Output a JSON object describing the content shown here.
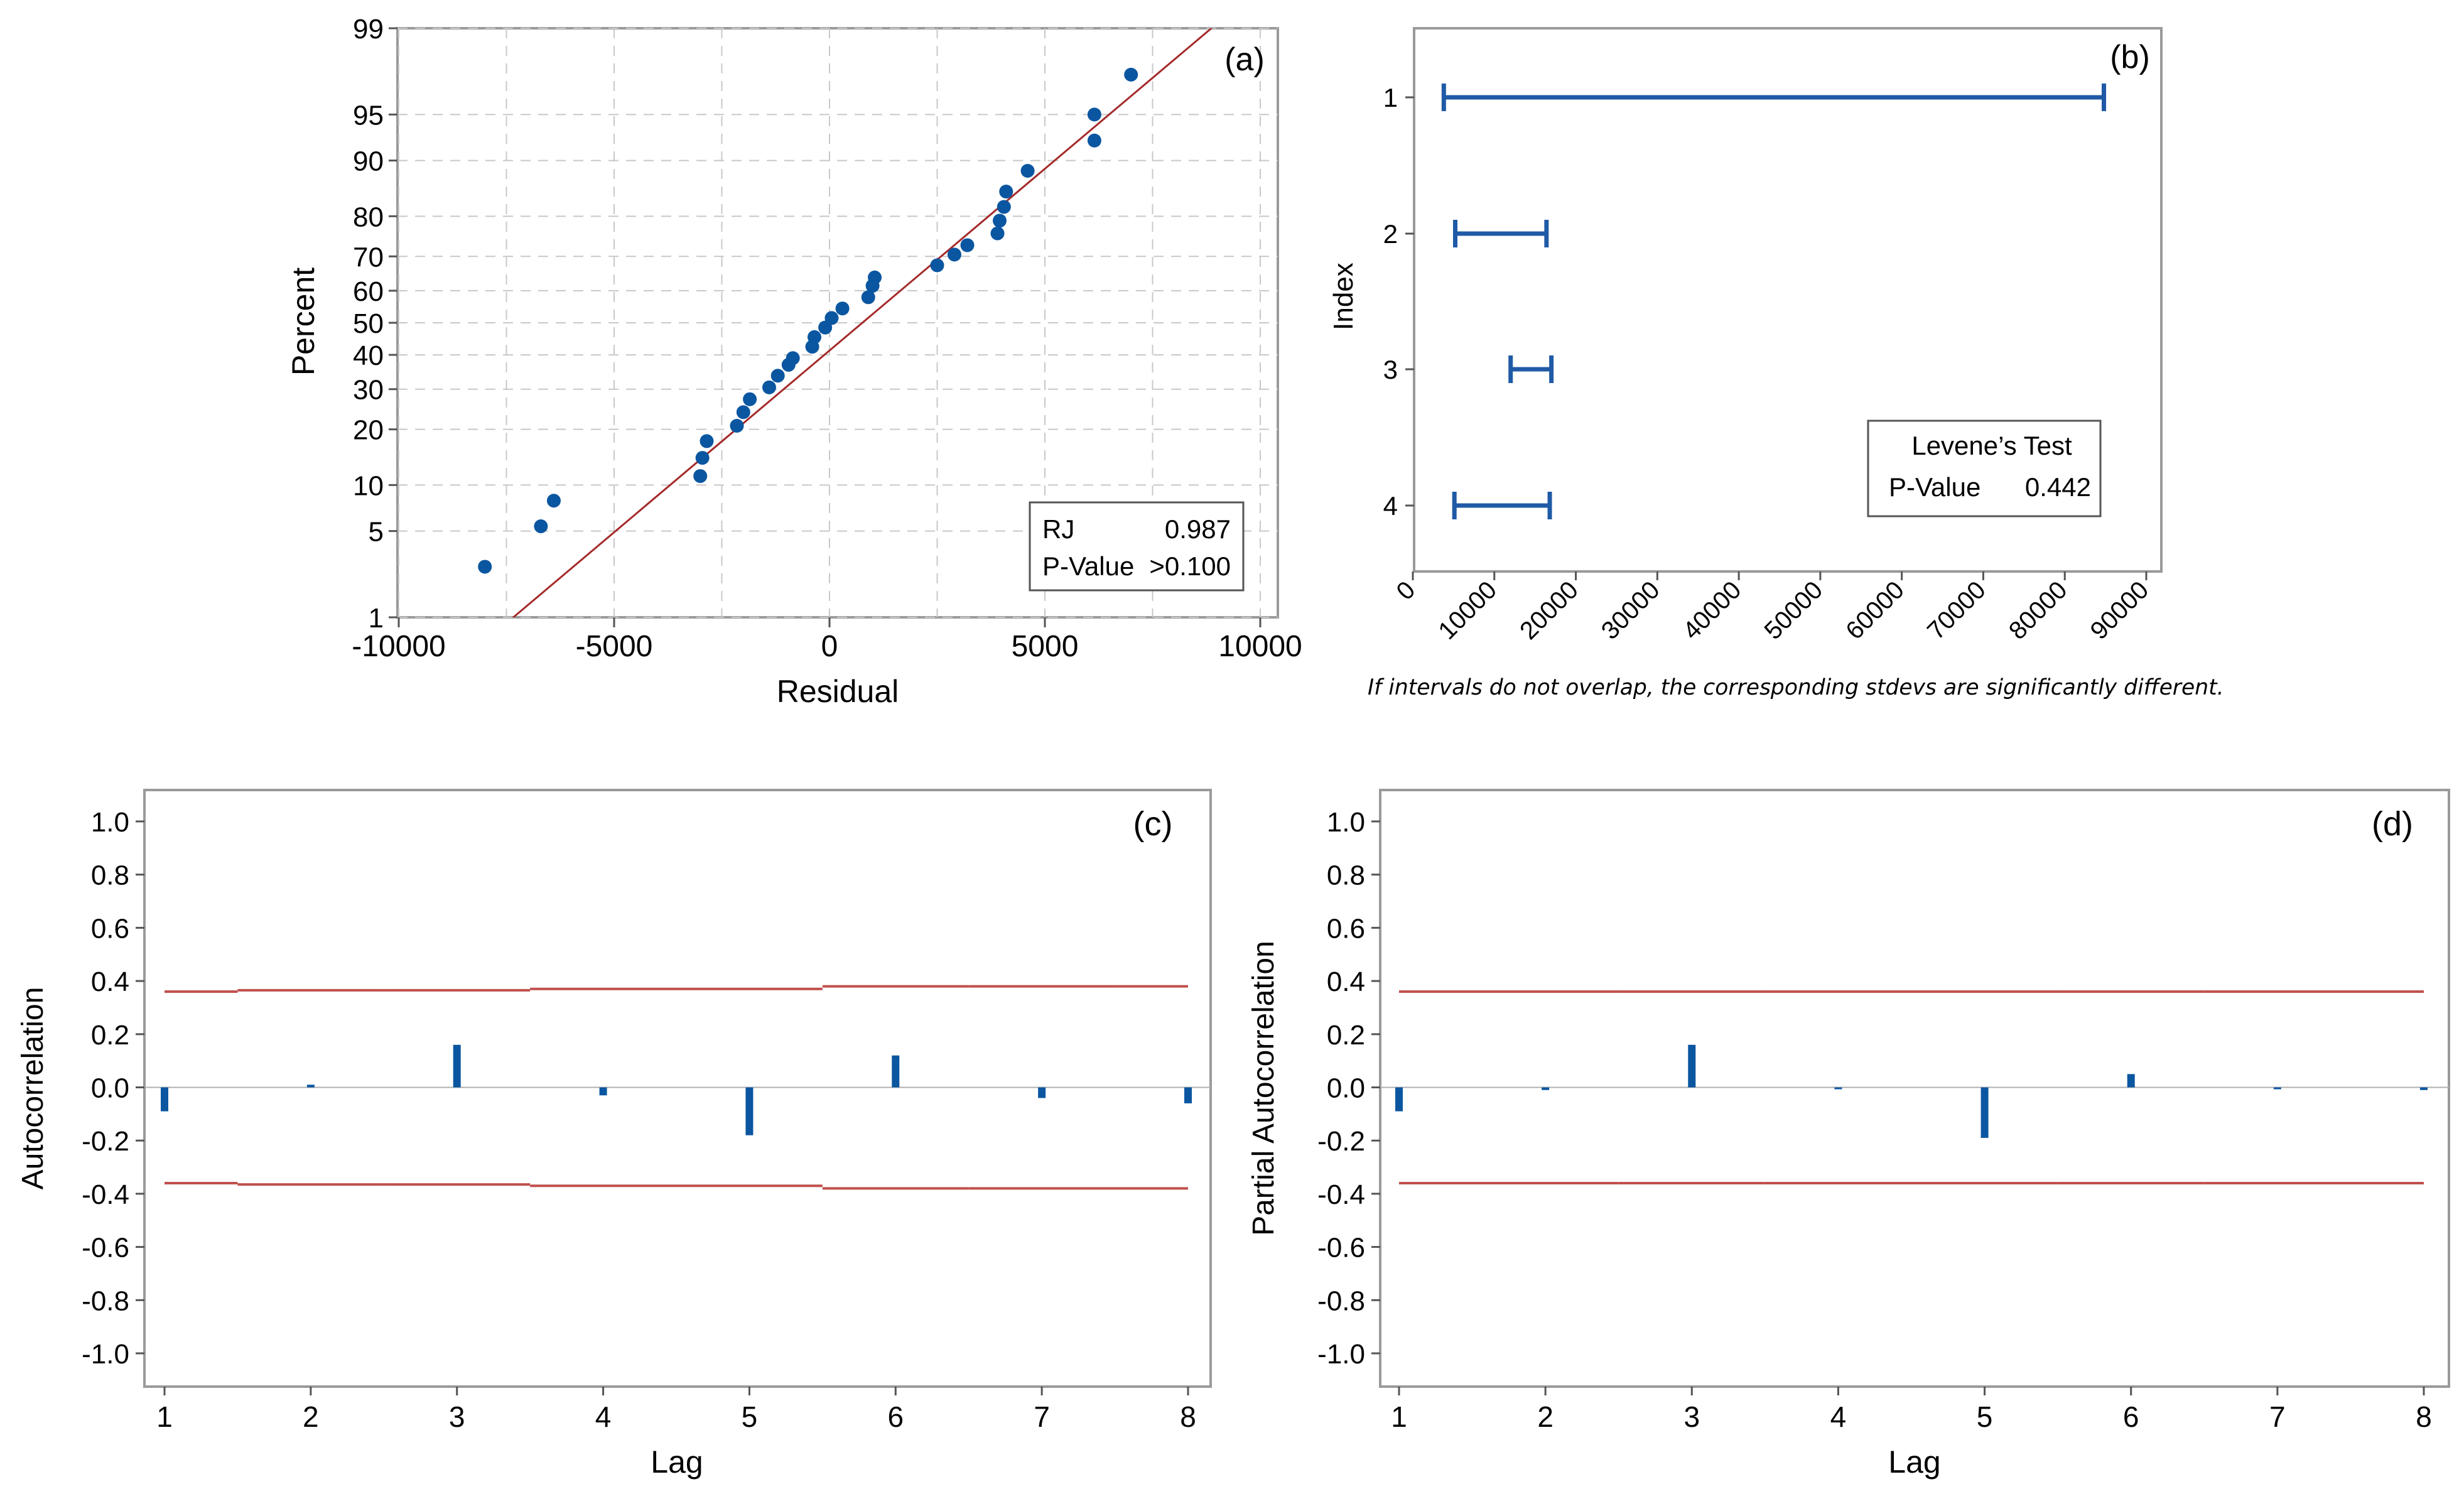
{
  "colors": {
    "marker": "#0b56a0",
    "fit_line": "#a52a2a",
    "limit_line": "#c0504d",
    "interval": "#1f5aa6",
    "bar": "#0b56a0",
    "grid": "#c8c8c8",
    "frame": "#9a9a9a"
  },
  "chart_data": [
    {
      "id": "a",
      "type": "scatter",
      "panel_label": "(a)",
      "title": "",
      "xlabel": "Residual",
      "ylabel": "Percent",
      "xlim": [
        -10000,
        10000
      ],
      "ylim_percent": [
        1,
        99
      ],
      "y_scale": "normal-probability",
      "xticks": [
        -10000,
        -5000,
        0,
        5000,
        10000
      ],
      "xtick_labels": [
        "-10000",
        "-5000",
        "0",
        "5000",
        "10000"
      ],
      "yticks": [
        1,
        5,
        10,
        20,
        30,
        40,
        50,
        60,
        70,
        80,
        90,
        95,
        99
      ],
      "ytick_labels": [
        "1",
        "5",
        "10",
        "20",
        "30",
        "40",
        "50",
        "60",
        "70",
        "80",
        "90",
        "95",
        "99"
      ],
      "fit_line": {
        "p_at_xmin": 0.1,
        "p_at_xmax": 99.6
      },
      "points": [
        {
          "x": -8000,
          "y": 2.7
        },
        {
          "x": -6700,
          "y": 5.4
        },
        {
          "x": -6400,
          "y": 8.0
        },
        {
          "x": -3000,
          "y": 11.3
        },
        {
          "x": -2950,
          "y": 14.3
        },
        {
          "x": -2850,
          "y": 17.5
        },
        {
          "x": -2150,
          "y": 20.8
        },
        {
          "x": -2000,
          "y": 24.0
        },
        {
          "x": -1850,
          "y": 27.3
        },
        {
          "x": -1400,
          "y": 30.5
        },
        {
          "x": -1200,
          "y": 33.8
        },
        {
          "x": -950,
          "y": 37.0
        },
        {
          "x": -850,
          "y": 39.0
        },
        {
          "x": -400,
          "y": 42.5
        },
        {
          "x": -350,
          "y": 45.5
        },
        {
          "x": -100,
          "y": 48.5
        },
        {
          "x": 50,
          "y": 51.5
        },
        {
          "x": 300,
          "y": 54.5
        },
        {
          "x": 900,
          "y": 58.0
        },
        {
          "x": 1000,
          "y": 61.5
        },
        {
          "x": 1050,
          "y": 64.0
        },
        {
          "x": 2500,
          "y": 67.5
        },
        {
          "x": 2900,
          "y": 70.5
        },
        {
          "x": 3200,
          "y": 73.0
        },
        {
          "x": 3900,
          "y": 76.0
        },
        {
          "x": 3950,
          "y": 79.0
        },
        {
          "x": 4050,
          "y": 82.0
        },
        {
          "x": 4100,
          "y": 85.0
        },
        {
          "x": 4600,
          "y": 88.5
        },
        {
          "x": 6150,
          "y": 92.5
        },
        {
          "x": 6150,
          "y": 95.0
        },
        {
          "x": 7000,
          "y": 97.5
        }
      ],
      "stats_box": {
        "rows": [
          {
            "label": "RJ",
            "value": "0.987"
          },
          {
            "label": "P-Value",
            "value": ">0.100"
          }
        ]
      }
    },
    {
      "id": "b",
      "type": "interval",
      "panel_label": "(b)",
      "xlabel": "",
      "ylabel": "Index",
      "xlim": [
        0,
        90000
      ],
      "xticks": [
        0,
        10000,
        20000,
        30000,
        40000,
        50000,
        60000,
        70000,
        80000,
        90000
      ],
      "xtick_labels": [
        "0",
        "10000",
        "20000",
        "30000",
        "40000",
        "50000",
        "60000",
        "70000",
        "80000",
        "90000"
      ],
      "categories": [
        "1",
        "2",
        "3",
        "4"
      ],
      "intervals": [
        {
          "index": "1",
          "low": 3800,
          "high": 84800
        },
        {
          "index": "2",
          "low": 5200,
          "high": 16400
        },
        {
          "index": "3",
          "low": 12000,
          "high": 17000
        },
        {
          "index": "4",
          "low": 5100,
          "high": 16800
        }
      ],
      "legend_box": {
        "title": "Levene’s Test",
        "label": "P-Value",
        "value": "0.442"
      },
      "footnote": "If intervals do not overlap, the corresponding stdevs are significantly different."
    },
    {
      "id": "c",
      "type": "bar",
      "panel_label": "(c)",
      "xlabel": "Lag",
      "ylabel": "Autocorrelation",
      "ylim": [
        -1.0,
        1.0
      ],
      "yticks": [
        1.0,
        0.8,
        0.6,
        0.4,
        0.2,
        0.0,
        -0.2,
        -0.4,
        -0.6,
        -0.8,
        -1.0
      ],
      "ytick_labels": [
        "1.0",
        "0.8",
        "0.6",
        "0.4",
        "0.2",
        "0.0",
        "-0.2",
        "-0.4",
        "-0.6",
        "-0.8",
        "-1.0"
      ],
      "categories": [
        "1",
        "2",
        "3",
        "4",
        "5",
        "6",
        "7",
        "8"
      ],
      "values": [
        -0.09,
        0.01,
        0.16,
        -0.03,
        -0.18,
        0.12,
        -0.04,
        -0.06
      ],
      "upper_limits": [
        0.36,
        0.365,
        0.365,
        0.37,
        0.37,
        0.38,
        0.38,
        0.38
      ],
      "lower_limits": [
        -0.36,
        -0.365,
        -0.365,
        -0.37,
        -0.37,
        -0.38,
        -0.38,
        -0.38
      ]
    },
    {
      "id": "d",
      "type": "bar",
      "panel_label": "(d)",
      "xlabel": "Lag",
      "ylabel": "Partial Autocorrelation",
      "ylim": [
        -1.0,
        1.0
      ],
      "yticks": [
        1.0,
        0.8,
        0.6,
        0.4,
        0.2,
        0.0,
        -0.2,
        -0.4,
        -0.6,
        -0.8,
        -1.0
      ],
      "ytick_labels": [
        "1.0",
        "0.8",
        "0.6",
        "0.4",
        "0.2",
        "0.0",
        "-0.2",
        "-0.4",
        "-0.6",
        "-0.8",
        "-1.0"
      ],
      "categories": [
        "1",
        "2",
        "3",
        "4",
        "5",
        "6",
        "7",
        "8"
      ],
      "values": [
        -0.09,
        -0.01,
        0.16,
        0.0,
        -0.19,
        0.05,
        -0.005,
        -0.01
      ],
      "upper_limits": [
        0.36,
        0.36,
        0.36,
        0.36,
        0.36,
        0.36,
        0.36,
        0.36
      ],
      "lower_limits": [
        -0.36,
        -0.36,
        -0.36,
        -0.36,
        -0.36,
        -0.36,
        -0.36,
        -0.36
      ]
    }
  ]
}
